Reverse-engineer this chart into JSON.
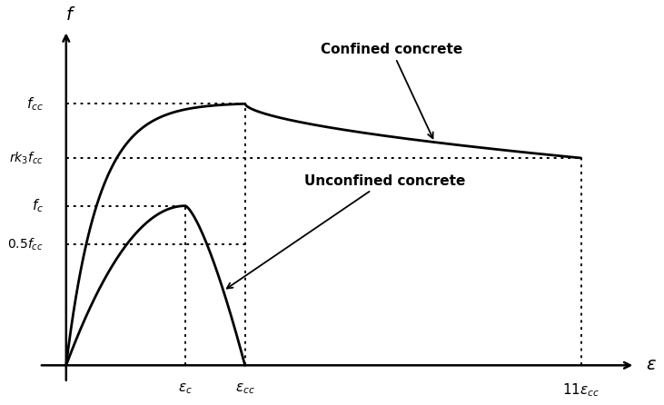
{
  "background_color": "#ffffff",
  "y_levels": {
    "fcc": 0.82,
    "rk3fcc": 0.65,
    "fc": 0.5,
    "half_fcc": 0.38
  },
  "x_levels": {
    "eps_c": 0.22,
    "eps_cc": 0.33,
    "eps_11cc": 0.95
  },
  "confined_label": "Confined concrete",
  "unconfined_label": "Unconfined concrete",
  "curve_color": "#000000",
  "dotted_color": "#000000"
}
